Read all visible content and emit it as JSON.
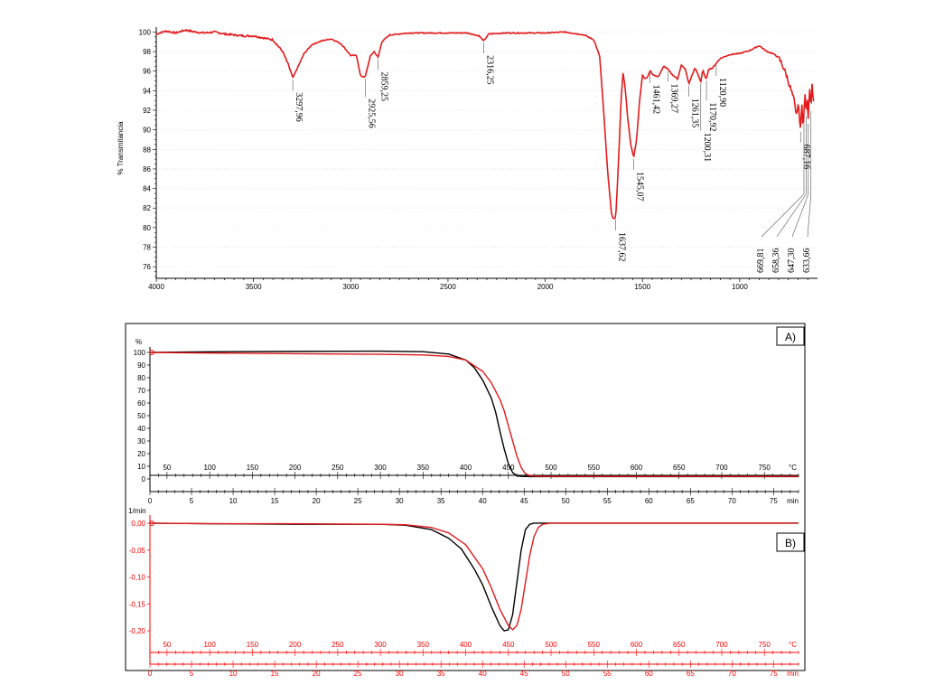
{
  "colors": {
    "sample": "#e31a1c",
    "reference": "#000000",
    "red_axis": "#ff0000"
  },
  "chart_data": [
    {
      "id": "ftir",
      "type": "line",
      "ylabel": "% Transmitancia",
      "xlim": [
        4000,
        600
      ],
      "ylim": [
        75,
        100.5
      ],
      "x_ticks": [
        "4000",
        "3500",
        "3000",
        "2500",
        "2000",
        "1500",
        "1000"
      ],
      "y_ticks": [
        "76",
        "78",
        "80",
        "82",
        "84",
        "86",
        "88",
        "90",
        "92",
        "94",
        "96",
        "98",
        "100"
      ],
      "series": [
        {
          "x": [
            4000,
            3950,
            3900,
            3850,
            3800,
            3750,
            3700,
            3650,
            3600,
            3550,
            3500,
            3450,
            3400,
            3350,
            3320,
            3297.96,
            3270,
            3240,
            3200,
            3150,
            3100,
            3050,
            3000,
            2970,
            2950,
            2925.56,
            2900,
            2880,
            2859.25,
            2840,
            2800,
            2700,
            2600,
            2500,
            2400,
            2340,
            2316.25,
            2290,
            2200,
            2100,
            2000,
            1900,
            1800,
            1750,
            1720,
            1700,
            1680,
            1660,
            1650,
            1637.62,
            1625,
            1610,
            1600,
            1590,
            1575,
            1560,
            1545.07,
            1530,
            1515,
            1500,
            1485,
            1470,
            1461.42,
            1450,
            1420,
            1390,
            1369.27,
            1350,
            1320,
            1300,
            1280,
            1261.35,
            1245,
            1230,
            1215,
            1200.31,
            1190,
            1180,
            1170.92,
            1160,
            1140,
            1120.9,
            1100,
            1050,
            1000,
            950,
            900,
            860,
            830,
            800,
            780,
            760,
            740,
            720,
            710,
            700,
            690,
            687.16,
            680,
            675,
            669.81,
            665,
            658.36,
            653,
            647.3,
            640,
            633.66,
            628,
            620
          ],
          "y": [
            99.8,
            100.1,
            99.9,
            100.2,
            100.0,
            99.9,
            100.0,
            99.8,
            99.7,
            99.6,
            99.6,
            99.4,
            99.2,
            98.0,
            96.6,
            95.3,
            96.5,
            97.8,
            98.7,
            99.1,
            99.3,
            98.8,
            97.6,
            97.6,
            95.5,
            95.4,
            97.5,
            98.0,
            97.4,
            99.0,
            99.7,
            99.9,
            99.9,
            99.9,
            99.9,
            99.6,
            99.1,
            99.8,
            99.9,
            99.9,
            99.9,
            100.0,
            99.7,
            99.2,
            97.5,
            92.0,
            86.0,
            81.5,
            80.9,
            81.0,
            86.0,
            93.0,
            95.8,
            94.5,
            91.0,
            88.5,
            87.2,
            89.0,
            93.0,
            95.6,
            95.2,
            95.5,
            96.1,
            95.7,
            95.4,
            96.5,
            96.2,
            95.7,
            95.2,
            96.6,
            96.2,
            94.7,
            95.6,
            96.3,
            95.7,
            94.9,
            96.1,
            95.5,
            95.2,
            96.2,
            96.3,
            96.8,
            97.3,
            97.7,
            97.8,
            98.1,
            98.6,
            98.0,
            97.8,
            97.4,
            96.6,
            95.6,
            94.3,
            93.0,
            91.3,
            92.6,
            90.8,
            90.0,
            92.5,
            90.6,
            91.5,
            93.8,
            91.7,
            93.2,
            91.0,
            94.4,
            92.3,
            94.7,
            93.0
          ]
        }
      ],
      "annotations": [
        "3297,96",
        "2925,56",
        "2859,25",
        "2316,25",
        "1637,62",
        "1545,07",
        "1461,42",
        "1369,27",
        "1261,35",
        "1200,31",
        "1170,92",
        "1120,90",
        "687,16",
        "669,81",
        "658,36",
        "647,30",
        "633,66"
      ]
    },
    {
      "id": "tga",
      "panel_label": "A)",
      "type": "line",
      "ylabel": "%",
      "xlim_temp": [
        30,
        790
      ],
      "xlim_time": [
        0,
        78
      ],
      "ylim": [
        0,
        100
      ],
      "temp_ticks": [
        "50",
        "100",
        "150",
        "200",
        "250",
        "300",
        "350",
        "400",
        "450",
        "500",
        "550",
        "600",
        "650",
        "700",
        "750"
      ],
      "time_ticks": [
        "0",
        "5",
        "10",
        "15",
        "20",
        "25",
        "30",
        "35",
        "40",
        "45",
        "50",
        "55",
        "60",
        "65",
        "70",
        "75"
      ],
      "y_ticks": [
        "0",
        "10",
        "20",
        "30",
        "40",
        "50",
        "60",
        "70",
        "80",
        "90",
        "100"
      ],
      "temp_unit": "°C",
      "time_unit": "min",
      "series": [
        {
          "color": "#000000",
          "x": [
            30,
            100,
            200,
            300,
            350,
            380,
            400,
            410,
            420,
            430,
            435,
            440,
            445,
            450,
            455,
            460,
            465,
            470,
            480,
            500,
            600,
            700,
            790
          ],
          "y": [
            100.0,
            100.5,
            100.8,
            101.0,
            100.6,
            98.7,
            94.0,
            88.0,
            78.0,
            64.0,
            53.0,
            38.0,
            24.0,
            12.0,
            5.0,
            2.5,
            2.0,
            1.9,
            1.8,
            1.8,
            1.8,
            1.8,
            1.8
          ]
        },
        {
          "color": "#e31a1c",
          "x": [
            30,
            100,
            200,
            300,
            350,
            380,
            400,
            420,
            430,
            440,
            445,
            450,
            455,
            460,
            465,
            470,
            475,
            480,
            490,
            500,
            600,
            700,
            790
          ],
          "y": [
            100.0,
            99.5,
            99.0,
            98.5,
            98.0,
            96.8,
            94.0,
            85.0,
            76.0,
            63.0,
            54.0,
            42.0,
            30.0,
            18.0,
            9.0,
            4.0,
            2.8,
            2.3,
            2.1,
            2.0,
            2.0,
            2.0,
            2.0
          ]
        }
      ]
    },
    {
      "id": "dtg",
      "panel_label": "B)",
      "type": "line",
      "ylabel": "1/min",
      "xlim_temp": [
        30,
        790
      ],
      "xlim_time": [
        0,
        78
      ],
      "ylim": [
        -0.22,
        0.005
      ],
      "temp_ticks": [
        "50",
        "100",
        "150",
        "200",
        "250",
        "300",
        "350",
        "400",
        "450",
        "500",
        "550",
        "600",
        "650",
        "700",
        "750"
      ],
      "time_ticks": [
        "0",
        "5",
        "10",
        "15",
        "20",
        "25",
        "30",
        "35",
        "40",
        "45",
        "50",
        "55",
        "60",
        "65",
        "70",
        "75"
      ],
      "y_ticks": [
        "0,00",
        "-0,05",
        "-0,10",
        "-0,15",
        "-0,20"
      ],
      "temp_unit": "°C",
      "time_unit": "min",
      "series": [
        {
          "color": "#000000",
          "x": [
            30,
            100,
            200,
            300,
            330,
            360,
            380,
            395,
            410,
            420,
            430,
            440,
            445,
            450,
            455,
            460,
            465,
            470,
            475,
            480,
            500,
            600,
            700,
            790
          ],
          "y": [
            0.0,
            -0.001,
            -0.002,
            -0.002,
            -0.004,
            -0.012,
            -0.028,
            -0.048,
            -0.085,
            -0.115,
            -0.155,
            -0.19,
            -0.2,
            -0.198,
            -0.17,
            -0.11,
            -0.05,
            -0.012,
            -0.002,
            0.0,
            0.0,
            0.0,
            0.0,
            0.0
          ]
        },
        {
          "color": "#e31a1c",
          "x": [
            30,
            100,
            200,
            300,
            330,
            360,
            380,
            400,
            420,
            430,
            440,
            450,
            455,
            460,
            465,
            470,
            475,
            480,
            485,
            490,
            500,
            600,
            700,
            790
          ],
          "y": [
            0.0,
            -0.001,
            -0.001,
            -0.002,
            -0.003,
            -0.008,
            -0.018,
            -0.04,
            -0.085,
            -0.12,
            -0.16,
            -0.19,
            -0.198,
            -0.19,
            -0.16,
            -0.11,
            -0.06,
            -0.025,
            -0.008,
            -0.002,
            0.0,
            0.0,
            0.0,
            0.0
          ]
        }
      ]
    }
  ]
}
